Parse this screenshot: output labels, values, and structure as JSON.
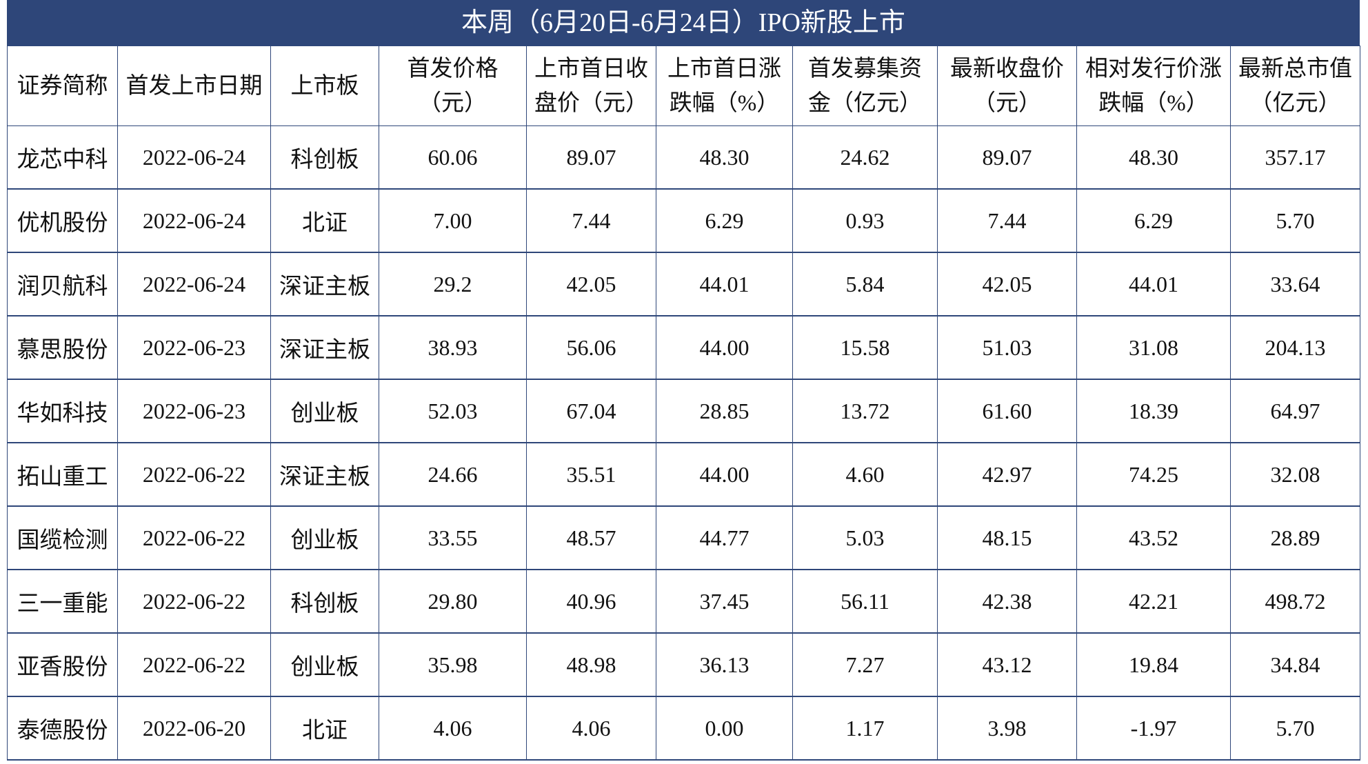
{
  "title": "本周（6月20日-6月24日）IPO新股上市",
  "columns": [
    "证券简称",
    "首发上市日期",
    "上市板",
    "首发价格（元）",
    "上市首日收盘价（元）",
    "上市首日涨跌幅（%）",
    "首发募集资金（亿元）",
    "最新收盘价（元）",
    "相对发行价涨跌幅（%）",
    "最新总市值（亿元）"
  ],
  "rows": [
    [
      "龙芯中科",
      "2022-06-24",
      "科创板",
      "60.06",
      "89.07",
      "48.30",
      "24.62",
      "89.07",
      "48.30",
      "357.17"
    ],
    [
      "优机股份",
      "2022-06-24",
      "北证",
      "7.00",
      "7.44",
      "6.29",
      "0.93",
      "7.44",
      "6.29",
      "5.70"
    ],
    [
      "润贝航科",
      "2022-06-24",
      "深证主板",
      "29.2",
      "42.05",
      "44.01",
      "5.84",
      "42.05",
      "44.01",
      "33.64"
    ],
    [
      "慕思股份",
      "2022-06-23",
      "深证主板",
      "38.93",
      "56.06",
      "44.00",
      "15.58",
      "51.03",
      "31.08",
      "204.13"
    ],
    [
      "华如科技",
      "2022-06-23",
      "创业板",
      "52.03",
      "67.04",
      "28.85",
      "13.72",
      "61.60",
      "18.39",
      "64.97"
    ],
    [
      "拓山重工",
      "2022-06-22",
      "深证主板",
      "24.66",
      "35.51",
      "44.00",
      "4.60",
      "42.97",
      "74.25",
      "32.08"
    ],
    [
      "国缆检测",
      "2022-06-22",
      "创业板",
      "33.55",
      "48.57",
      "44.77",
      "5.03",
      "48.15",
      "43.52",
      "28.89"
    ],
    [
      "三一重能",
      "2022-06-22",
      "科创板",
      "29.80",
      "40.96",
      "37.45",
      "56.11",
      "42.38",
      "42.21",
      "498.72"
    ],
    [
      "亚香股份",
      "2022-06-22",
      "创业板",
      "35.98",
      "48.98",
      "36.13",
      "7.27",
      "43.12",
      "19.84",
      "34.84"
    ],
    [
      "泰德股份",
      "2022-06-20",
      "北证",
      "4.06",
      "4.06",
      "0.00",
      "1.17",
      "3.98",
      "-1.97",
      "5.70"
    ]
  ],
  "colors": {
    "header_band": "#2e4679",
    "grid": "#2e4679"
  }
}
